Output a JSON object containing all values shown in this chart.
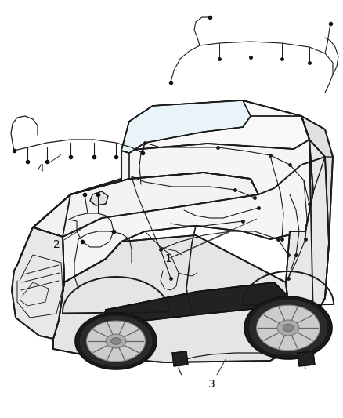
{
  "bg_color": "#ffffff",
  "line_color": "#1a1a1a",
  "fig_width": 4.38,
  "fig_height": 5.33,
  "dpi": 100,
  "label_fontsize": 10,
  "wiring_color": "#1a1a1a",
  "car_fill": "#ffffff",
  "car_dark": "#111111"
}
